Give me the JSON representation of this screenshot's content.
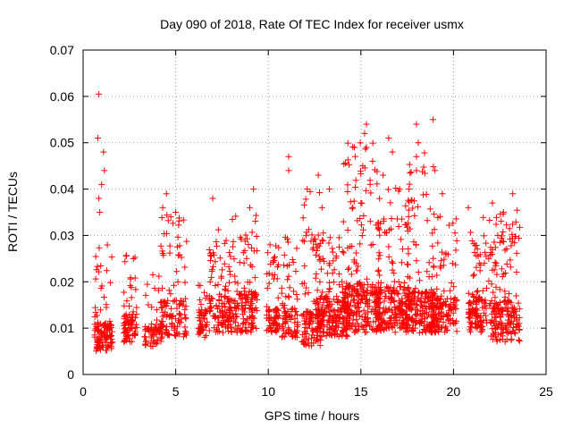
{
  "chart_data": {
    "type": "scatter",
    "title": "Day 090 of 2018, Rate Of TEC Index for receiver usmx",
    "xlabel": "GPS time / hours",
    "ylabel": "ROTI / TECUs",
    "xlim": [
      0,
      25
    ],
    "ylim": [
      0,
      0.07
    ],
    "x_ticks": [
      "0",
      "5",
      "10",
      "15",
      "20",
      "25"
    ],
    "y_ticks": [
      "0",
      "0.01",
      "0.02",
      "0.03",
      "0.04",
      "0.05",
      "0.06",
      "0.07"
    ],
    "grid": true,
    "marker": "+",
    "color": "#ff0000",
    "series": [
      {
        "name": "ROTI",
        "passes": [
          {
            "t0": 0.6,
            "t1": 1.6,
            "base": 0.008,
            "spread": 0.006,
            "peak": 0.029,
            "n": 120
          },
          {
            "t0": 2.2,
            "t1": 2.9,
            "base": 0.01,
            "spread": 0.006,
            "peak": 0.026,
            "n": 80
          },
          {
            "t0": 3.3,
            "t1": 4.3,
            "base": 0.009,
            "spread": 0.005,
            "peak": 0.022,
            "n": 70
          },
          {
            "t0": 4.2,
            "t1": 5.6,
            "base": 0.011,
            "spread": 0.008,
            "peak": 0.035,
            "n": 120
          },
          {
            "t0": 6.2,
            "t1": 6.7,
            "base": 0.011,
            "spread": 0.006,
            "peak": 0.022,
            "n": 50
          },
          {
            "t0": 6.8,
            "t1": 8.0,
            "base": 0.012,
            "spread": 0.008,
            "peak": 0.033,
            "n": 120
          },
          {
            "t0": 7.9,
            "t1": 9.4,
            "base": 0.012,
            "spread": 0.009,
            "peak": 0.036,
            "n": 150
          },
          {
            "t0": 9.9,
            "t1": 10.6,
            "base": 0.012,
            "spread": 0.006,
            "peak": 0.03,
            "n": 70
          },
          {
            "t0": 10.7,
            "t1": 11.6,
            "base": 0.011,
            "spread": 0.007,
            "peak": 0.03,
            "n": 80
          },
          {
            "t0": 11.8,
            "t1": 13.0,
            "base": 0.009,
            "spread": 0.008,
            "peak": 0.04,
            "n": 120
          },
          {
            "t0": 12.5,
            "t1": 14.3,
            "base": 0.011,
            "spread": 0.009,
            "peak": 0.032,
            "n": 200
          },
          {
            "t0": 14.0,
            "t1": 16.0,
            "base": 0.012,
            "spread": 0.011,
            "peak": 0.05,
            "n": 260
          },
          {
            "t0": 15.8,
            "t1": 17.6,
            "base": 0.012,
            "spread": 0.01,
            "peak": 0.042,
            "n": 230
          },
          {
            "t0": 17.4,
            "t1": 19.0,
            "base": 0.012,
            "spread": 0.009,
            "peak": 0.048,
            "n": 200
          },
          {
            "t0": 18.8,
            "t1": 20.2,
            "base": 0.012,
            "spread": 0.008,
            "peak": 0.035,
            "n": 150
          },
          {
            "t0": 20.8,
            "t1": 21.8,
            "base": 0.012,
            "spread": 0.008,
            "peak": 0.034,
            "n": 120
          },
          {
            "t0": 21.9,
            "t1": 23.6,
            "base": 0.01,
            "spread": 0.009,
            "peak": 0.037,
            "n": 200
          }
        ],
        "highlights": [
          [
            0.85,
            0.0605
          ],
          [
            0.8,
            0.051
          ],
          [
            1.1,
            0.048
          ],
          [
            1.15,
            0.044
          ],
          [
            1.0,
            0.041
          ],
          [
            0.85,
            0.038
          ],
          [
            0.9,
            0.035
          ],
          [
            4.5,
            0.039
          ],
          [
            4.3,
            0.036
          ],
          [
            5.0,
            0.035
          ],
          [
            7.0,
            0.038
          ],
          [
            9.2,
            0.04
          ],
          [
            9.0,
            0.036
          ],
          [
            11.1,
            0.047
          ],
          [
            11.1,
            0.044
          ],
          [
            12.1,
            0.04
          ],
          [
            12.7,
            0.043
          ],
          [
            13.3,
            0.04
          ],
          [
            12.9,
            0.036
          ],
          [
            15.3,
            0.054
          ],
          [
            15.2,
            0.052
          ],
          [
            15.3,
            0.049
          ],
          [
            15.1,
            0.045
          ],
          [
            15.5,
            0.041
          ],
          [
            15.0,
            0.037
          ],
          [
            16.5,
            0.051
          ],
          [
            16.7,
            0.048
          ],
          [
            16.2,
            0.043
          ],
          [
            18.0,
            0.054
          ],
          [
            18.1,
            0.05
          ],
          [
            18.0,
            0.047
          ],
          [
            18.0,
            0.044
          ],
          [
            17.6,
            0.04
          ],
          [
            18.9,
            0.055
          ],
          [
            19.0,
            0.044
          ],
          [
            19.4,
            0.039
          ],
          [
            20.8,
            0.036
          ],
          [
            22.1,
            0.037
          ],
          [
            22.7,
            0.035
          ],
          [
            23.2,
            0.039
          ]
        ]
      }
    ]
  }
}
